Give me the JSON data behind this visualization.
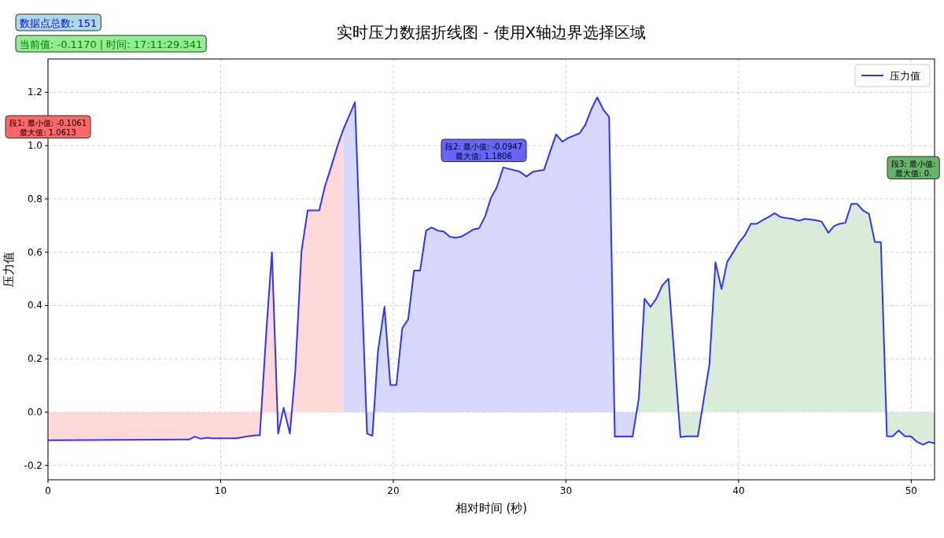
{
  "chart_data": {
    "type": "line",
    "title": "实时压力数据折线图 - 使用X轴边界选择区域",
    "xlabel": "相对时间 (秒)",
    "ylabel": "压力值",
    "xlim": [
      0,
      51.35
    ],
    "ylim": [
      -0.254,
      1.325
    ],
    "xticks": [
      0,
      10,
      20,
      30,
      40,
      50
    ],
    "yticks": [
      -0.2,
      {
        "value": 0,
        "label": "0.0"
      },
      0.2,
      0.4,
      0.6,
      0.8,
      {
        "value": 1,
        "label": "1.0"
      },
      1.2
    ],
    "grid": true,
    "legend": "top right",
    "annotations": [
      "数据点总数: 151",
      "当前值: -0.1170 | 时间: 17:11:29.341",
      "段1: 最小值: -0.1061\n最大值: 1.0613",
      "段2: 最小值: -0.0947\n最大值: 1.1806",
      "段3: 最小值:\n最大值: 0."
    ],
    "series": [
      {
        "type": "area",
        "color": "#ffd8d8",
        "x": [
          0,
          8.17,
          8.5,
          8.85,
          9.23,
          9.53,
          10.9,
          11.51,
          11.97,
          12.27,
          12.65,
          12.97,
          13.33,
          13.65,
          14.01,
          14.32,
          14.68,
          15.04,
          15.71,
          16.04,
          16.38,
          16.76,
          17.11
        ],
        "values": [
          -0.106,
          -0.103,
          -0.092,
          -0.1,
          -0.096,
          -0.098,
          -0.098,
          -0.092,
          -0.087,
          -0.087,
          0.307,
          0.6,
          -0.081,
          0.016,
          -0.081,
          0.15,
          0.602,
          0.757,
          0.757,
          0.847,
          0.916,
          0.997,
          1.061
        ]
      },
      {
        "type": "area",
        "color": "#d8d8ff",
        "x": [
          17.11,
          17.78,
          18.48,
          18.79,
          19.11,
          19.49,
          19.83,
          20.18,
          20.52,
          20.86,
          21.2,
          21.55,
          21.9,
          22.22,
          22.57,
          22.92,
          23.27,
          23.6,
          23.95,
          24.28,
          24.62,
          24.97,
          25.32,
          25.65,
          25.99,
          26.37,
          27.33,
          27.71,
          28.09,
          28.73,
          29.07,
          29.43,
          29.79,
          30.14,
          30.44,
          30.79,
          31.13,
          31.48,
          31.81,
          32.16,
          32.5,
          32.83,
          33.86,
          34.22
        ],
        "values": [
          1.061,
          1.163,
          -0.081,
          -0.089,
          0.227,
          0.395,
          0.102,
          0.102,
          0.315,
          0.348,
          0.531,
          0.531,
          0.681,
          0.693,
          0.681,
          0.678,
          0.658,
          0.654,
          0.659,
          0.671,
          0.685,
          0.69,
          0.735,
          0.803,
          0.843,
          0.918,
          0.902,
          0.884,
          0.902,
          0.909,
          0.975,
          1.042,
          1.015,
          1.029,
          1.037,
          1.046,
          1.079,
          1.138,
          1.181,
          1.135,
          1.108,
          -0.092,
          -0.092,
          0.051
        ]
      },
      {
        "type": "area",
        "color": "#d9ecd9",
        "x": [
          34.22,
          34.55,
          34.9,
          35.23,
          35.57,
          35.94,
          36.63,
          36.98,
          37.64,
          37.97,
          38.31,
          38.66,
          39.01,
          39.34,
          39.69,
          40.02,
          40.37,
          40.71,
          41.06,
          41.39,
          41.74,
          42.08,
          42.43,
          42.76,
          43.11,
          43.48,
          43.83,
          44.47,
          44.81,
          45.2,
          45.53,
          45.85,
          46.18,
          46.53,
          46.87,
          47.22,
          47.55,
          47.89,
          48.24,
          48.59,
          48.92,
          49.27,
          49.64,
          49.98,
          50.32,
          50.67,
          51.02,
          51.35
        ],
        "values": [
          0.051,
          0.425,
          0.395,
          0.425,
          0.474,
          0.501,
          -0.094,
          -0.091,
          -0.091,
          0.043,
          0.179,
          0.562,
          0.462,
          0.564,
          0.6,
          0.636,
          0.664,
          0.707,
          0.707,
          0.72,
          0.732,
          0.746,
          0.732,
          0.728,
          0.725,
          0.718,
          0.725,
          0.72,
          0.715,
          0.673,
          0.698,
          0.707,
          0.71,
          0.781,
          0.781,
          0.756,
          0.744,
          0.638,
          0.638,
          -0.091,
          -0.091,
          -0.069,
          -0.091,
          -0.091,
          -0.111,
          -0.122,
          -0.112,
          -0.117
        ]
      },
      {
        "type": "line",
        "name": "压力值",
        "color": "#3333ff",
        "x": [
          0,
          8.17,
          8.5,
          8.85,
          9.23,
          9.53,
          10.9,
          11.51,
          11.97,
          12.27,
          12.65,
          12.97,
          13.33,
          13.65,
          14.01,
          14.32,
          14.68,
          15.04,
          15.71,
          16.04,
          16.38,
          16.76,
          17.11,
          17.78,
          18.48,
          18.79,
          19.11,
          19.49,
          19.83,
          20.18,
          20.52,
          20.86,
          21.2,
          21.55,
          21.9,
          22.22,
          22.57,
          22.92,
          23.27,
          23.6,
          23.95,
          24.28,
          24.62,
          24.97,
          25.32,
          25.65,
          25.99,
          26.37,
          27.33,
          27.71,
          28.09,
          28.73,
          29.07,
          29.43,
          29.79,
          30.14,
          30.44,
          30.79,
          31.13,
          31.48,
          31.81,
          32.16,
          32.5,
          32.83,
          33.86,
          34.22,
          34.55,
          34.9,
          35.23,
          35.57,
          35.94,
          36.63,
          36.98,
          37.64,
          37.97,
          38.31,
          38.66,
          39.01,
          39.34,
          39.69,
          40.02,
          40.37,
          40.71,
          41.06,
          41.39,
          41.74,
          42.08,
          42.43,
          42.76,
          43.11,
          43.48,
          43.83,
          44.47,
          44.81,
          45.2,
          45.53,
          45.85,
          46.18,
          46.53,
          46.87,
          47.22,
          47.55,
          47.89,
          48.24,
          48.59,
          48.92,
          49.27,
          49.64,
          49.98,
          50.32,
          50.67,
          51.02,
          51.35
        ],
        "values": [
          -0.106,
          -0.103,
          -0.092,
          -0.1,
          -0.096,
          -0.098,
          -0.098,
          -0.092,
          -0.087,
          -0.087,
          0.307,
          0.6,
          -0.081,
          0.016,
          -0.081,
          0.15,
          0.602,
          0.757,
          0.757,
          0.847,
          0.916,
          0.997,
          1.061,
          1.163,
          -0.081,
          -0.089,
          0.227,
          0.395,
          0.102,
          0.102,
          0.315,
          0.348,
          0.531,
          0.531,
          0.681,
          0.693,
          0.681,
          0.678,
          0.658,
          0.654,
          0.659,
          0.671,
          0.685,
          0.69,
          0.735,
          0.803,
          0.843,
          0.918,
          0.902,
          0.884,
          0.902,
          0.909,
          0.975,
          1.042,
          1.015,
          1.029,
          1.037,
          1.046,
          1.079,
          1.138,
          1.181,
          1.135,
          1.108,
          -0.092,
          -0.092,
          0.051,
          0.425,
          0.395,
          0.425,
          0.474,
          0.501,
          -0.094,
          -0.091,
          -0.091,
          0.043,
          0.179,
          0.562,
          0.462,
          0.564,
          0.6,
          0.636,
          0.664,
          0.707,
          0.707,
          0.72,
          0.732,
          0.746,
          0.732,
          0.728,
          0.725,
          0.718,
          0.725,
          0.72,
          0.715,
          0.673,
          0.698,
          0.707,
          0.71,
          0.781,
          0.781,
          0.756,
          0.744,
          0.638,
          0.638,
          -0.091,
          -0.091,
          -0.069,
          -0.091,
          -0.091,
          -0.111,
          -0.122,
          -0.112,
          -0.117
        ]
      }
    ]
  }
}
